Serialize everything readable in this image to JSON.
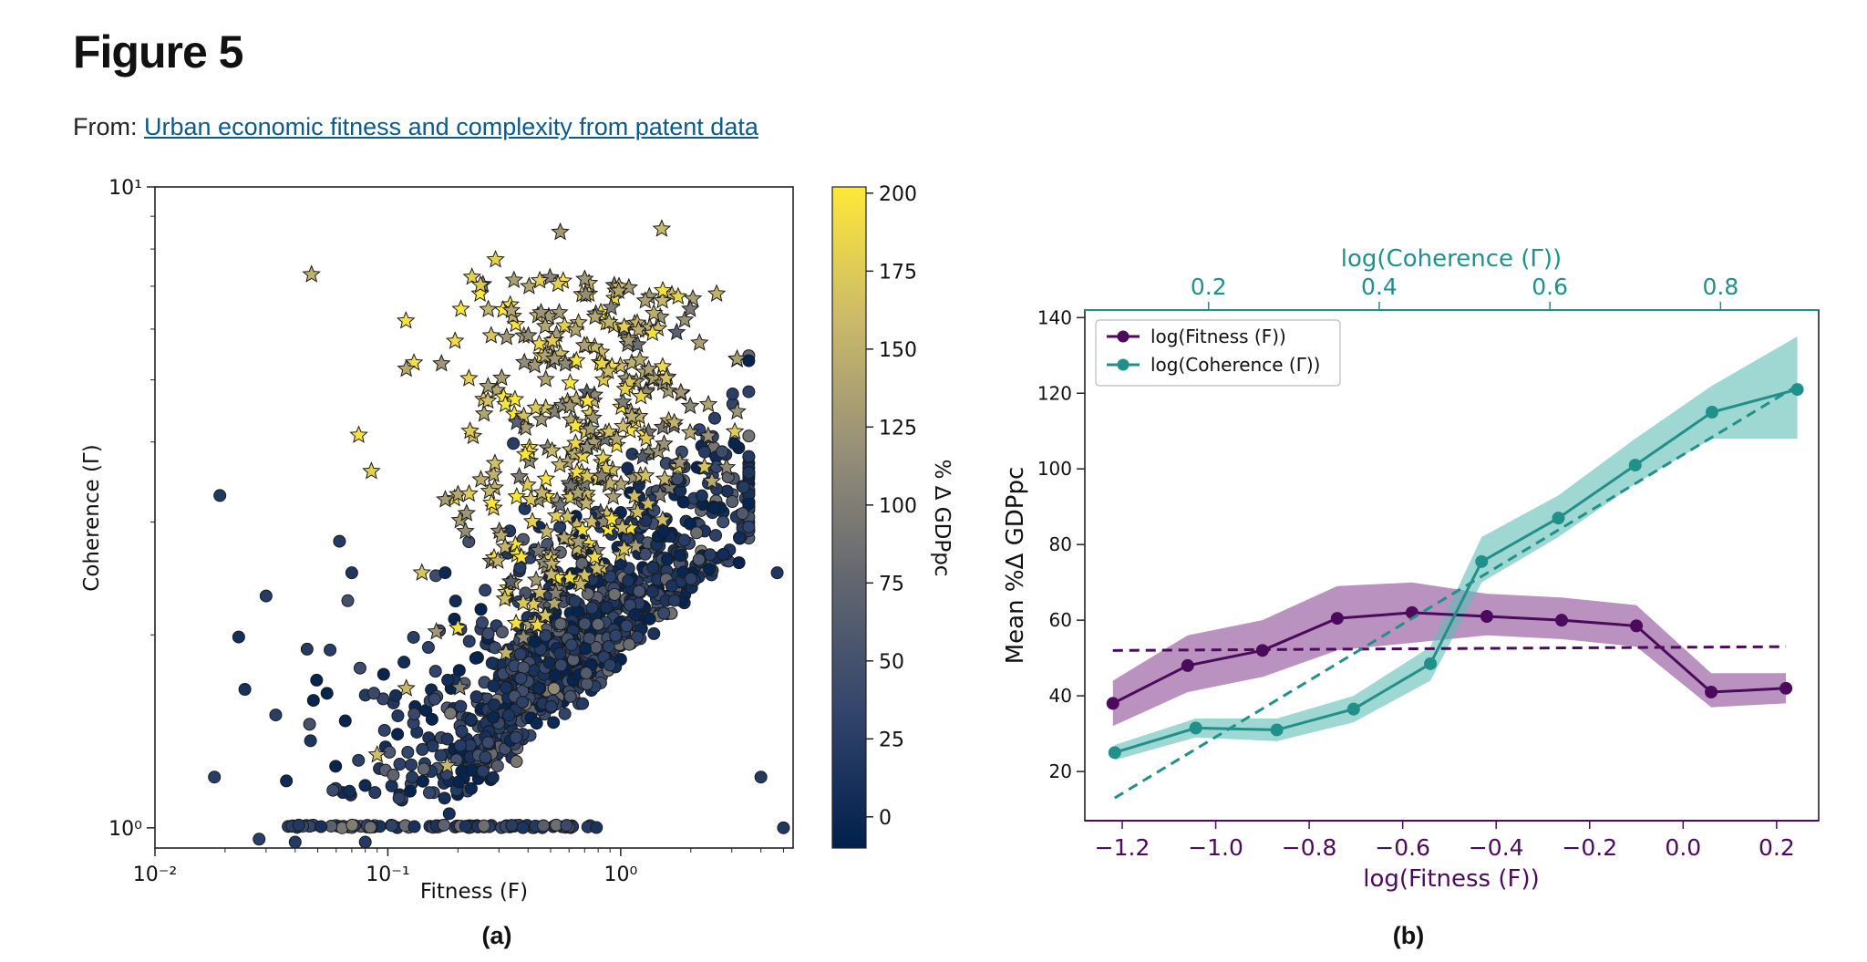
{
  "page": {
    "title": "Figure 5",
    "source_prefix": "From:",
    "source_link": "Urban economic fitness and complexity from patent data"
  },
  "chart_data": [
    {
      "panel": "(a)",
      "type": "scatter",
      "xlabel": "Fitness (F)",
      "ylabel": "Coherence (Γ)",
      "xscale": "log",
      "yscale": "log",
      "xlim": [
        0.01,
        5.5
      ],
      "ylim": [
        0.93,
        10
      ],
      "x_tick_labels": [
        "10⁻²",
        "10⁻¹",
        "10⁰"
      ],
      "y_tick_labels": [
        "10⁰",
        "10¹"
      ],
      "colorbar": {
        "label": "% Δ GDPpc",
        "range": [
          -10,
          202
        ],
        "ticks": [
          0,
          25,
          50,
          75,
          100,
          125,
          150,
          175,
          200
        ],
        "colormap": [
          "#00204c",
          "#31446b",
          "#666970",
          "#958f78",
          "#cbba69",
          "#fee838"
        ]
      },
      "marker_legend": {
        "circle": "lower % Δ GDPpc (mostly dark blue)",
        "star": "higher % Δ GDPpc (mostly yellow)"
      },
      "grid": false
    },
    {
      "panel": "(b)",
      "type": "line",
      "xlabel": "log(Fitness (F))",
      "x2label": "log(Coherence (Γ))",
      "ylabel": "Mean %Δ GDPpc",
      "xlim": [
        -1.28,
        0.29
      ],
      "x2lim": [
        0.055,
        0.915
      ],
      "ylim": [
        7,
        142
      ],
      "x_ticks": [
        -1.2,
        -1.0,
        -0.8,
        -0.6,
        -0.4,
        -0.2,
        0.0,
        0.2
      ],
      "x_tick_labels": [
        "−1.2",
        "−1.0",
        "−0.8",
        "−0.6",
        "−0.4",
        "−0.2",
        "0.0",
        "0.2"
      ],
      "x2_ticks": [
        0.2,
        0.4,
        0.6,
        0.8
      ],
      "x2_tick_labels": [
        "0.2",
        "0.4",
        "0.6",
        "0.8"
      ],
      "y_ticks": [
        20,
        40,
        60,
        80,
        100,
        120,
        140
      ],
      "legend_position": "top-left",
      "grid": false,
      "series": [
        {
          "name": "log(Fitness (F))",
          "color": "#4b0a5c",
          "band_color": "#8c4a94",
          "x": [
            -1.22,
            -1.06,
            -0.9,
            -0.74,
            -0.58,
            -0.42,
            -0.26,
            -0.1,
            0.06,
            0.22
          ],
          "y": [
            38,
            48,
            52,
            60.5,
            62,
            61,
            60,
            58.5,
            41,
            42
          ],
          "lower": [
            32,
            41,
            45,
            52,
            54,
            56,
            55,
            53,
            37,
            38
          ],
          "upper": [
            44,
            56,
            60,
            69,
            70,
            67,
            66,
            64,
            46,
            46
          ],
          "fit": {
            "x": [
              -1.22,
              0.22
            ],
            "y": [
              52,
              53
            ]
          }
        },
        {
          "name": "log(Coherence (Γ))",
          "color": "#22908a",
          "band_color": "#5fbdb5",
          "x": [
            0.09,
            0.185,
            0.28,
            0.37,
            0.46,
            0.52,
            0.61,
            0.7,
            0.79,
            0.89
          ],
          "y": [
            25,
            31.5,
            31,
            36.5,
            48.5,
            75.5,
            87,
            101,
            115,
            121
          ],
          "lower": [
            23,
            29,
            28,
            33,
            44,
            70,
            82,
            96,
            108,
            108
          ],
          "upper": [
            27,
            34,
            34,
            40,
            53,
            82,
            93,
            108,
            122,
            135
          ],
          "fit": {
            "x": [
              0.09,
              0.89
            ],
            "y": [
              13,
              122
            ]
          }
        }
      ]
    }
  ],
  "panel_labels": [
    "(a)",
    "(b)"
  ]
}
